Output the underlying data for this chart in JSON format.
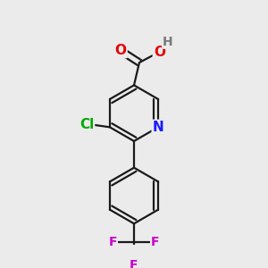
{
  "background_color": "#ebebeb",
  "bond_color": "#1a1a1a",
  "atom_colors": {
    "O": "#e60000",
    "N": "#1a1aff",
    "Cl": "#00aa00",
    "F": "#cc00cc",
    "H": "#7a7a7a",
    "C": "#1a1a1a"
  },
  "font_size": 10,
  "bond_lw": 1.6,
  "inner_off": 0.016,
  "ring_r": 0.105
}
